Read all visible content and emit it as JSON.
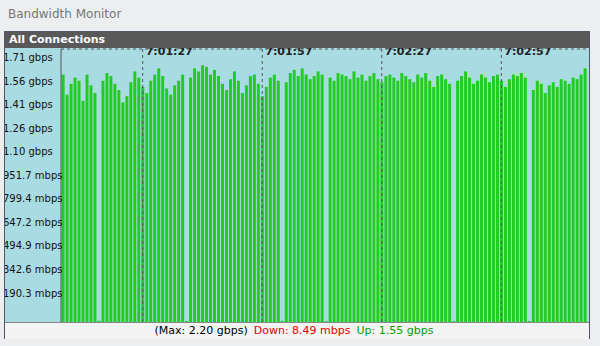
{
  "chart_data": {
    "type": "bar",
    "title": "Bandwidth Monitor",
    "subtitle": "All Connections",
    "categories": [
      null,
      null,
      null,
      null,
      null,
      null,
      null,
      null,
      null,
      null,
      null,
      null,
      null,
      null,
      null,
      null,
      null,
      null,
      null,
      null,
      "7:01:27",
      null,
      null,
      null,
      null,
      null,
      null,
      null,
      null,
      null,
      null,
      null,
      null,
      null,
      null,
      null,
      null,
      null,
      null,
      null,
      null,
      null,
      null,
      null,
      null,
      null,
      null,
      null,
      null,
      null,
      "7:01:57",
      null,
      null,
      null,
      null,
      null,
      null,
      null,
      null,
      null,
      null,
      null,
      null,
      null,
      null,
      null,
      null,
      null,
      null,
      null,
      null,
      null,
      null,
      null,
      null,
      null,
      null,
      null,
      null,
      null,
      "7:02:27",
      null,
      null,
      null,
      null,
      null,
      null,
      null,
      null,
      null,
      null,
      null,
      null,
      null,
      null,
      null,
      null,
      null,
      null,
      null,
      null,
      null,
      null,
      null,
      null,
      null,
      null,
      null,
      null,
      null,
      "7:02:57",
      null,
      null,
      null,
      null,
      null,
      null,
      null,
      null,
      null,
      null,
      null,
      null,
      null,
      null,
      null,
      null,
      null,
      null,
      null,
      null,
      null
    ],
    "values": [
      1600,
      1470,
      1540,
      1580,
      1560,
      1430,
      1600,
      1530,
      1480,
      8,
      1560,
      1610,
      1590,
      1540,
      1500,
      1420,
      1460,
      1550,
      1620,
      1580,
      1520,
      1480,
      1560,
      1600,
      1640,
      1590,
      1510,
      1470,
      1530,
      1560,
      1600,
      6,
      1580,
      1640,
      1620,
      1660,
      1650,
      1600,
      1630,
      1590,
      1540,
      1500,
      1570,
      1620,
      1560,
      1480,
      1530,
      1590,
      1600,
      1540,
      1460,
      1520,
      1580,
      1600,
      1560,
      7,
      1550,
      1610,
      1630,
      1590,
      1640,
      1600,
      1570,
      1590,
      1620,
      1600,
      5,
      1580,
      1560,
      1610,
      1600,
      1590,
      1570,
      1620,
      1580,
      1600,
      1560,
      1590,
      1610,
      1570,
      1550,
      1590,
      1600,
      1580,
      1560,
      1610,
      1590,
      1570,
      1550,
      1600,
      1580,
      1610,
      1560,
      1520,
      1590,
      1600,
      1570,
      1540,
      6,
      1560,
      1590,
      1620,
      1580,
      1540,
      1560,
      1600,
      1580,
      1550,
      1590,
      1600,
      1560,
      1520,
      1570,
      1600,
      1590,
      1610,
      1580,
      6,
      1500,
      1560,
      1540,
      1480,
      1530,
      1550,
      1520,
      1570,
      1560,
      1540,
      1580,
      1570,
      1600,
      1640
    ],
    "color": "#22cc22",
    "ylim": [
      0,
      1765
    ],
    "yticks": [
      {
        "value": 190.3,
        "label": "190.3 mbps"
      },
      {
        "value": 342.6,
        "label": "342.6 mbps"
      },
      {
        "value": 494.9,
        "label": "494.9 mbps"
      },
      {
        "value": 647.2,
        "label": "647.2 mbps"
      },
      {
        "value": 799.4,
        "label": "799.4 mbps"
      },
      {
        "value": 951.7,
        "label": "951.7 mbps"
      },
      {
        "value": 1104.1,
        "label": "1.10 gbps"
      },
      {
        "value": 1256.4,
        "label": "1.26 gbps"
      },
      {
        "value": 1408.7,
        "label": "1.41 gbps"
      },
      {
        "value": 1561.0,
        "label": "1.56 gbps"
      },
      {
        "value": 1713.3,
        "label": "1.71 gbps"
      }
    ],
    "grid": true,
    "annotations": [
      {
        "text": "(Max: 2.20 gbps)",
        "color": "#000000"
      },
      {
        "text": "Down: 8.49 mbps",
        "color": "#e00000"
      },
      {
        "text": "Up: 1.55 gbps",
        "color": "#00a000"
      }
    ]
  }
}
